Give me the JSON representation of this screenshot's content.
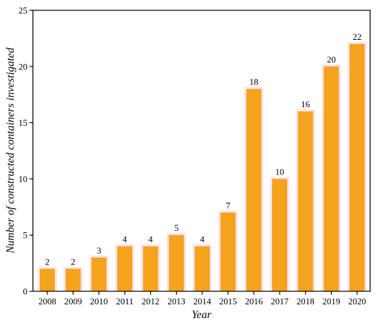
{
  "chart_data": {
    "type": "bar",
    "categories": [
      "2008",
      "2009",
      "2010",
      "2011",
      "2012",
      "2013",
      "2014",
      "2015",
      "2016",
      "2017",
      "2018",
      "2019",
      "2020"
    ],
    "values": [
      2,
      2,
      3,
      4,
      4,
      5,
      4,
      7,
      18,
      10,
      16,
      20,
      22
    ],
    "data_labels": [
      "2",
      "2",
      "3",
      "4",
      "4",
      "5",
      "4",
      "7",
      "18",
      "10",
      "16",
      "20",
      "22"
    ],
    "xlabel": "Year",
    "ylabel": "Number of constructed  containers investigated",
    "ylim": [
      0,
      25
    ],
    "yticks": [
      0,
      5,
      10,
      15,
      20,
      25
    ],
    "grid": false,
    "colors": {
      "bar": "#f5a21c",
      "bar_halo": "#fbe3ee"
    }
  }
}
